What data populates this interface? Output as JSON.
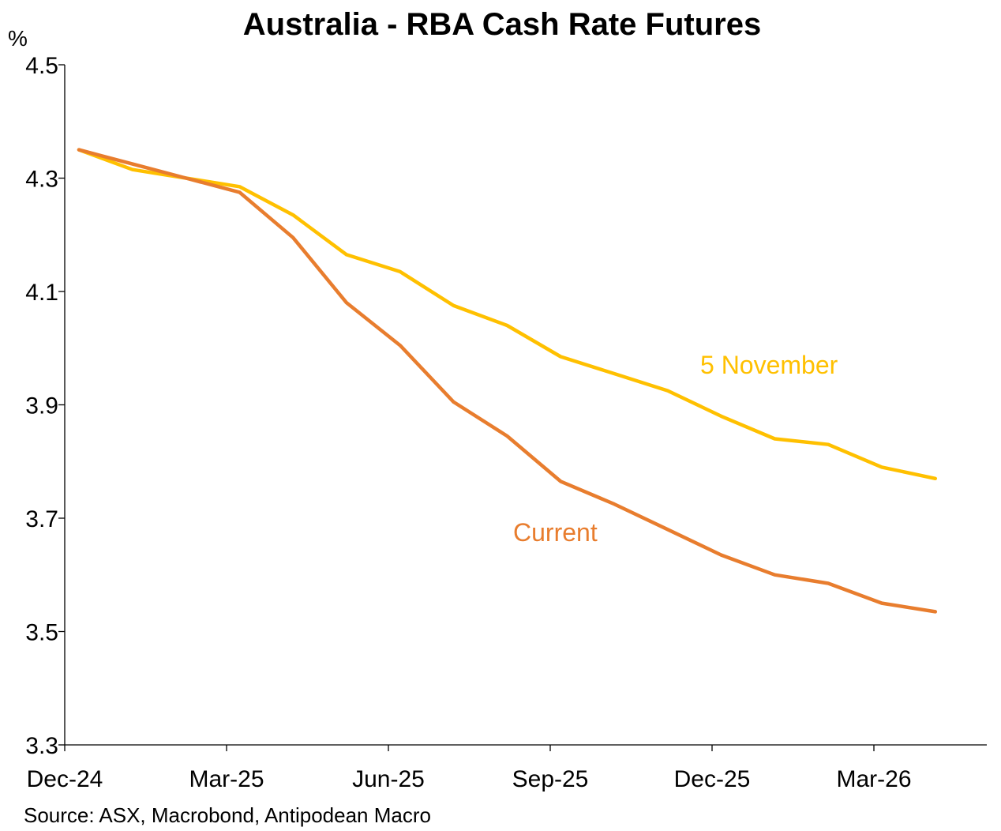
{
  "chart_data": {
    "type": "line",
    "title": "Australia - RBA Cash Rate Futures",
    "ylabel": "%",
    "xlabel": "",
    "source": "Source: ASX, Macrobond, Antipodean Macro",
    "ylim": [
      3.3,
      4.5
    ],
    "yticks": [
      3.3,
      3.5,
      3.7,
      3.9,
      4.1,
      4.3,
      4.5
    ],
    "ytick_labels": [
      "3.3",
      "3.5",
      "3.7",
      "3.9",
      "4.1",
      "4.3",
      "4.5"
    ],
    "x_tick_labels": [
      "Dec-24",
      "Mar-25",
      "Jun-25",
      "Sep-25",
      "Dec-25",
      "Mar-26"
    ],
    "grid": false,
    "legend": "inline labels",
    "x": [
      "2024-12",
      "2025-01",
      "2025-02",
      "2025-03",
      "2025-04",
      "2025-05",
      "2025-06",
      "2025-07",
      "2025-08",
      "2025-09",
      "2025-10",
      "2025-11",
      "2025-12",
      "2026-01",
      "2026-02",
      "2026-03",
      "2026-04"
    ],
    "series": [
      {
        "name": "Current",
        "color": "#E87D2E",
        "values": [
          4.35,
          4.325,
          4.3,
          4.275,
          4.195,
          4.08,
          4.005,
          3.905,
          3.845,
          3.765,
          3.725,
          3.68,
          3.635,
          3.6,
          3.585,
          3.55,
          3.535
        ]
      },
      {
        "name": "5 November",
        "color": "#FFC000",
        "values": [
          4.35,
          4.315,
          4.3,
          4.285,
          4.235,
          4.165,
          4.135,
          4.075,
          4.04,
          3.985,
          3.955,
          3.925,
          3.88,
          3.84,
          3.83,
          3.79,
          3.77
        ]
      }
    ]
  }
}
